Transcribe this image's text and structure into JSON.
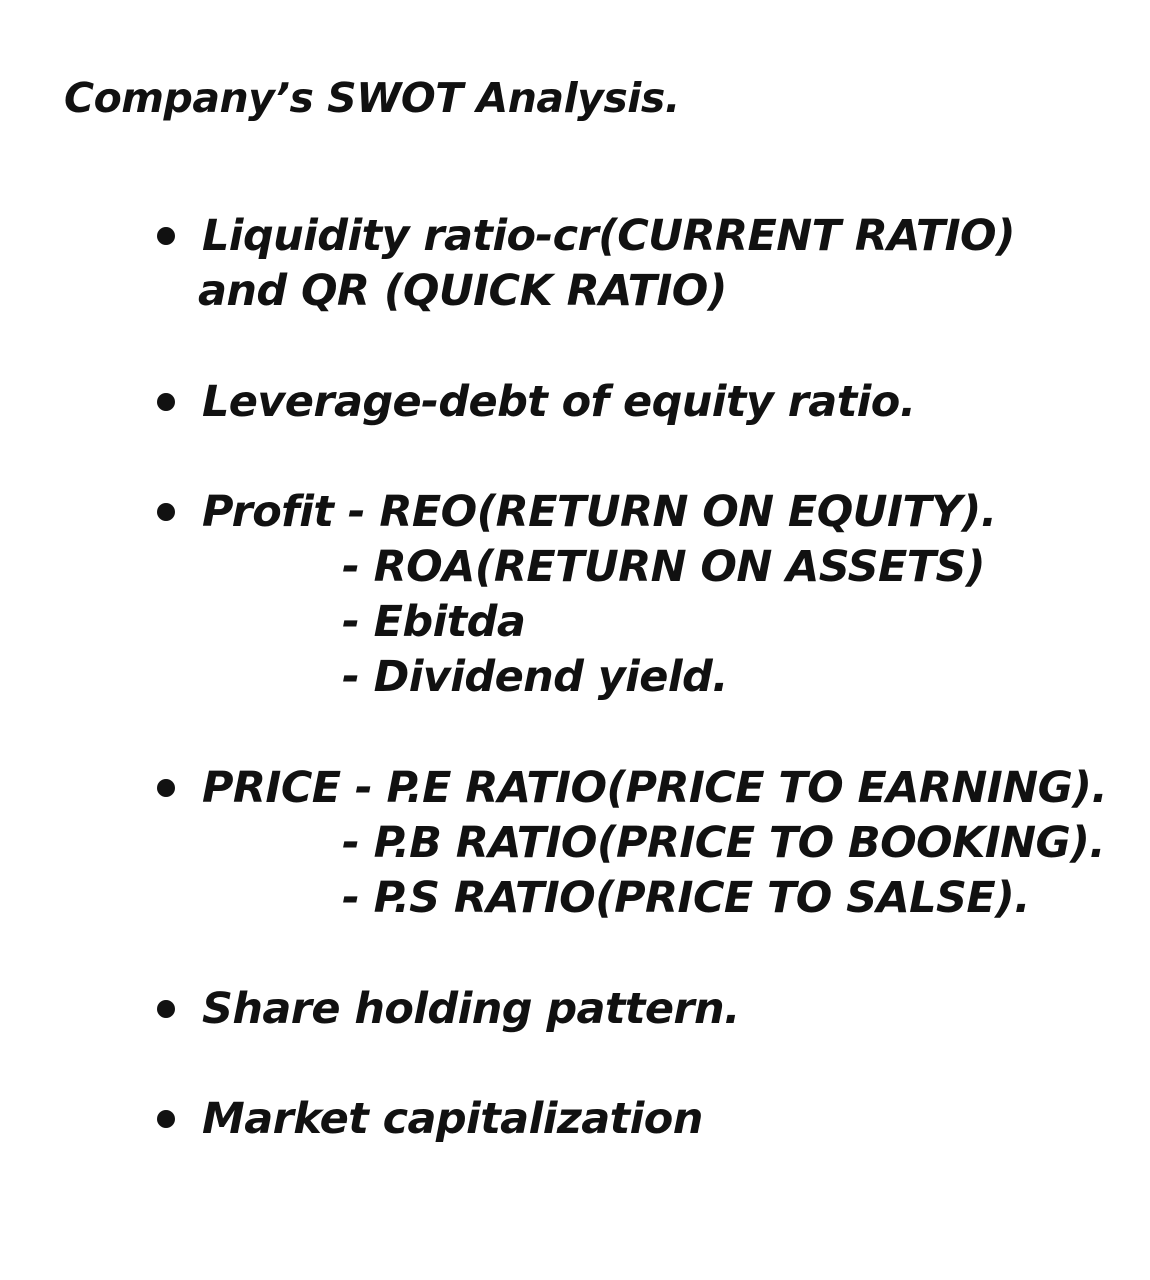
{
  "document": {
    "title": "Company’s SWOT Analysis.",
    "items": [
      {
        "lines": [
          "Liquidity ratio-cr(CURRENT RATIO)",
          "and QR (QUICK RATIO)"
        ]
      },
      {
        "lines": [
          "Leverage-debt of equity ratio."
        ]
      },
      {
        "lines": [
          "Profit - REO(RETURN ON EQUITY).",
          "- ROA(RETURN ON ASSETS)",
          "- Ebitda",
          "- Dividend yield."
        ]
      },
      {
        "lines": [
          "PRICE - P.E RATIO(PRICE TO EARNING).",
          "- P.B RATIO(PRICE TO BOOKING).",
          "- P.S RATIO(PRICE TO SALSE)."
        ]
      },
      {
        "lines": [
          "Share holding pattern."
        ]
      },
      {
        "lines": [
          "Market capitalization"
        ]
      }
    ]
  }
}
